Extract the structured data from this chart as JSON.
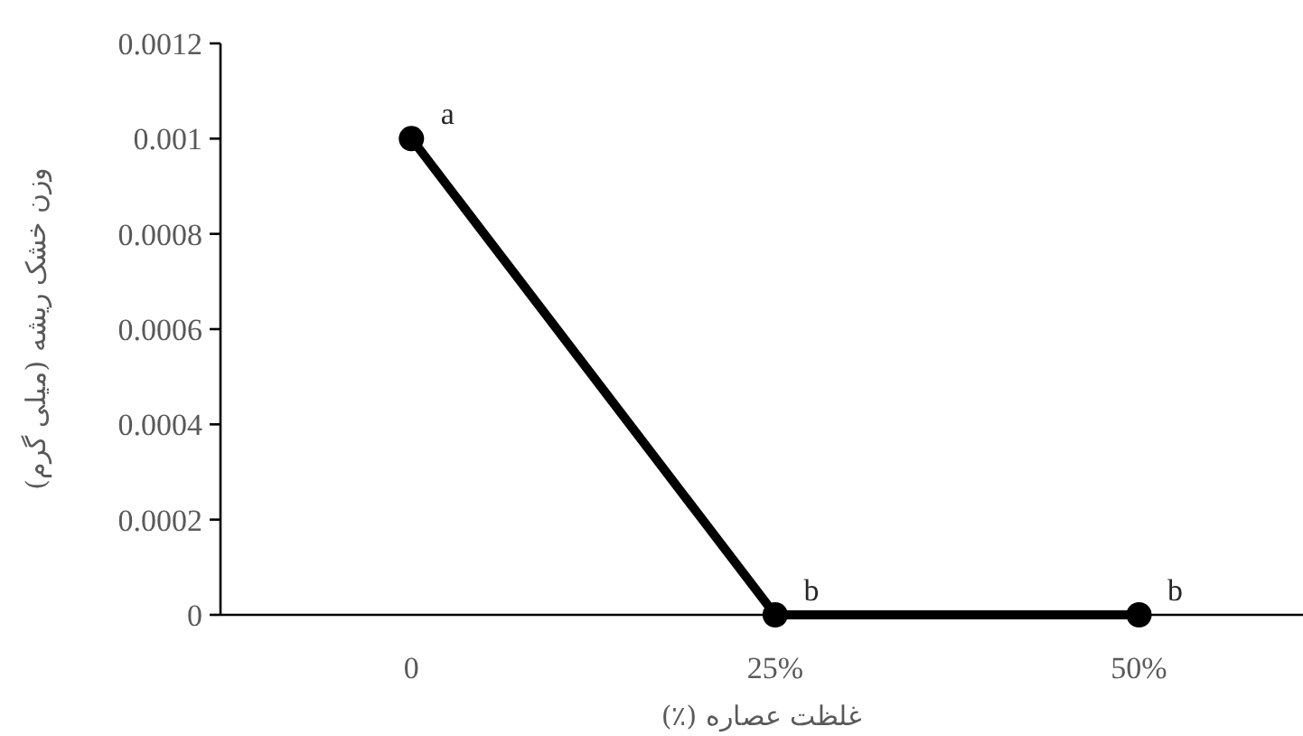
{
  "chart_data": {
    "type": "line",
    "xlabel": "غلظت عصاره (٪)",
    "ylabel": "وزن خشک ریشه (میلی گرم)",
    "categories": [
      "0",
      "25%",
      "50%"
    ],
    "series": [
      {
        "color": "#000000",
        "values": [
          0.001,
          0,
          0
        ]
      }
    ],
    "ylim": [
      0,
      0.0012
    ],
    "yticks": [
      0,
      0.0002,
      0.0004,
      0.0006,
      0.0008,
      0.001,
      0.0012
    ],
    "marker": "circle",
    "line_style": "solid",
    "grid": false,
    "annotations": [
      {
        "text": "a",
        "x": "0",
        "y": 0.001
      },
      {
        "text": "b",
        "x": "25%",
        "y": 0
      },
      {
        "text": "b",
        "x": "50%",
        "y": 0
      }
    ]
  }
}
